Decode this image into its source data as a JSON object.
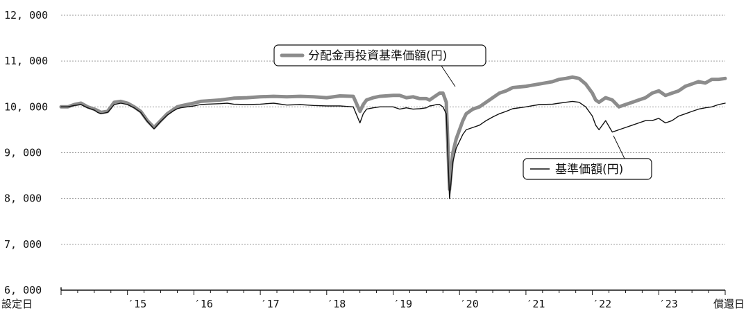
{
  "chart_data": {
    "type": "line",
    "title": "",
    "xlabel": "",
    "ylabel": "",
    "ylim": [
      6000,
      12000
    ],
    "y_ticks": [
      {
        "value": 6000,
        "label": "6, 000"
      },
      {
        "value": 7000,
        "label": "7, 000"
      },
      {
        "value": 8000,
        "label": "8, 000"
      },
      {
        "value": 9000,
        "label": "9, 000"
      },
      {
        "value": 10000,
        "label": "10, 000"
      },
      {
        "value": 11000,
        "label": "11, 000"
      },
      {
        "value": 12000,
        "label": "12, 000"
      }
    ],
    "xlim": [
      2014.0,
      2024.0
    ],
    "x_ticks": [
      {
        "value": 2014.0,
        "label": "設定日"
      },
      {
        "value": 2015.0,
        "label": "′15"
      },
      {
        "value": 2016.0,
        "label": "′16"
      },
      {
        "value": 2017.0,
        "label": "′17"
      },
      {
        "value": 2018.0,
        "label": "′18"
      },
      {
        "value": 2019.0,
        "label": "′19"
      },
      {
        "value": 2020.0,
        "label": "′20"
      },
      {
        "value": 2021.0,
        "label": "′21"
      },
      {
        "value": 2022.0,
        "label": "′22"
      },
      {
        "value": 2023.0,
        "label": "′23"
      },
      {
        "value": 2024.0,
        "label": "償還日"
      }
    ],
    "grid": true,
    "series": [
      {
        "name": "分配金再投資基準価額(円)",
        "color": "#8c8c8c",
        "x": [
          2014.0,
          2014.1,
          2014.2,
          2014.3,
          2014.4,
          2014.5,
          2014.55,
          2014.6,
          2014.7,
          2014.75,
          2014.8,
          2014.9,
          2015.0,
          2015.1,
          2015.2,
          2015.3,
          2015.4,
          2015.5,
          2015.6,
          2015.7,
          2015.75,
          2015.8,
          2015.9,
          2016.0,
          2016.1,
          2016.2,
          2016.4,
          2016.5,
          2016.6,
          2016.8,
          2017.0,
          2017.2,
          2017.4,
          2017.6,
          2017.8,
          2018.0,
          2018.2,
          2018.4,
          2018.5,
          2018.55,
          2018.6,
          2018.7,
          2018.8,
          2019.0,
          2019.1,
          2019.2,
          2019.3,
          2019.4,
          2019.5,
          2019.55,
          2019.6,
          2019.65,
          2019.7,
          2019.75,
          2019.8,
          2019.85,
          2019.9,
          2019.95,
          2020.0,
          2020.05,
          2020.1,
          2020.2,
          2020.3,
          2020.4,
          2020.5,
          2020.6,
          2020.7,
          2020.8,
          2021.0,
          2021.2,
          2021.4,
          2021.5,
          2021.6,
          2021.7,
          2021.8,
          2021.9,
          2022.0,
          2022.05,
          2022.1,
          2022.2,
          2022.3,
          2022.4,
          2022.5,
          2022.6,
          2022.7,
          2022.8,
          2022.9,
          2023.0,
          2023.1,
          2023.2,
          2023.3,
          2023.4,
          2023.5,
          2023.6,
          2023.7,
          2023.8,
          2023.9,
          2024.0
        ],
        "values": [
          10000,
          10000,
          10050,
          10080,
          10000,
          9950,
          9920,
          9880,
          9900,
          10000,
          10100,
          10120,
          10080,
          10000,
          9900,
          9700,
          9550,
          9700,
          9850,
          9950,
          10000,
          10020,
          10050,
          10080,
          10120,
          10130,
          10150,
          10170,
          10190,
          10200,
          10220,
          10230,
          10220,
          10230,
          10220,
          10200,
          10240,
          10230,
          9900,
          10050,
          10150,
          10200,
          10230,
          10250,
          10250,
          10200,
          10220,
          10180,
          10180,
          10150,
          10200,
          10250,
          10300,
          10300,
          10100,
          8200,
          9000,
          9300,
          9500,
          9700,
          9850,
          9950,
          10000,
          10100,
          10200,
          10300,
          10350,
          10420,
          10450,
          10500,
          10550,
          10600,
          10620,
          10650,
          10620,
          10500,
          10300,
          10150,
          10100,
          10200,
          10150,
          10000,
          10050,
          10100,
          10150,
          10200,
          10300,
          10350,
          10250,
          10300,
          10350,
          10450,
          10500,
          10550,
          10520,
          10600,
          10600,
          10620
        ]
      },
      {
        "name": "基準価額(円)",
        "color": "#111111",
        "x": [
          2014.0,
          2014.1,
          2014.2,
          2014.3,
          2014.4,
          2014.5,
          2014.55,
          2014.6,
          2014.7,
          2014.75,
          2014.8,
          2014.9,
          2015.0,
          2015.1,
          2015.2,
          2015.3,
          2015.4,
          2015.5,
          2015.6,
          2015.7,
          2015.75,
          2015.8,
          2015.9,
          2016.0,
          2016.1,
          2016.2,
          2016.4,
          2016.5,
          2016.6,
          2016.8,
          2017.0,
          2017.2,
          2017.4,
          2017.6,
          2017.8,
          2018.0,
          2018.2,
          2018.4,
          2018.5,
          2018.55,
          2018.6,
          2018.7,
          2018.8,
          2019.0,
          2019.1,
          2019.2,
          2019.3,
          2019.4,
          2019.5,
          2019.55,
          2019.6,
          2019.65,
          2019.7,
          2019.75,
          2019.8,
          2019.85,
          2019.9,
          2019.95,
          2020.0,
          2020.05,
          2020.1,
          2020.2,
          2020.3,
          2020.4,
          2020.5,
          2020.6,
          2020.7,
          2020.8,
          2021.0,
          2021.2,
          2021.4,
          2021.5,
          2021.6,
          2021.7,
          2021.8,
          2021.9,
          2022.0,
          2022.05,
          2022.1,
          2022.2,
          2022.3,
          2022.4,
          2022.5,
          2022.6,
          2022.7,
          2022.8,
          2022.9,
          2023.0,
          2023.1,
          2023.2,
          2023.3,
          2023.4,
          2023.5,
          2023.6,
          2023.7,
          2023.8,
          2023.9,
          2024.0
        ],
        "values": [
          10000,
          10000,
          10030,
          10050,
          9980,
          9930,
          9880,
          9850,
          9880,
          9960,
          10050,
          10080,
          10050,
          9980,
          9880,
          9680,
          9520,
          9680,
          9820,
          9920,
          9960,
          9980,
          10000,
          10020,
          10050,
          10060,
          10070,
          10080,
          10060,
          10050,
          10060,
          10080,
          10040,
          10050,
          10030,
          10020,
          10020,
          10000,
          9650,
          9850,
          9950,
          9980,
          10000,
          10000,
          9950,
          9980,
          9950,
          9960,
          9980,
          10020,
          10030,
          10050,
          10050,
          10000,
          9850,
          8000,
          8800,
          9100,
          9250,
          9400,
          9500,
          9550,
          9600,
          9700,
          9780,
          9850,
          9900,
          9960,
          10000,
          10050,
          10060,
          10080,
          10100,
          10120,
          10100,
          10000,
          9800,
          9600,
          9500,
          9700,
          9450,
          9500,
          9550,
          9600,
          9650,
          9700,
          9700,
          9750,
          9650,
          9700,
          9800,
          9850,
          9900,
          9950,
          9980,
          10000,
          10050,
          10080
        ]
      }
    ],
    "legend_placement": "annotation callouts"
  }
}
